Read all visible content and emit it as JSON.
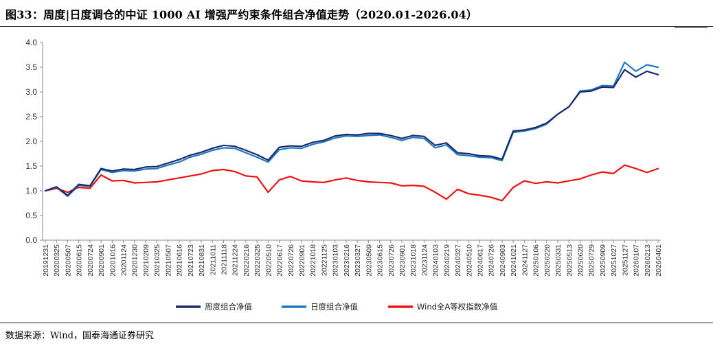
{
  "header": {
    "title": "图33：周度|日度调仓的中证 1000 AI 增强严约束条件组合净值走势（2020.01-2026.04）"
  },
  "footer": {
    "source": "数据来源：Wind，国泰海通证券研究"
  },
  "colors": {
    "weekly": "#1b2a6b",
    "daily": "#1f78c1",
    "wind": "#ee1111"
  },
  "chart_data": {
    "type": "line",
    "title": "",
    "xlabel": "",
    "ylabel": "",
    "ylim": [
      0,
      4.0
    ],
    "yticks": [
      "0.0",
      "0.5",
      "1.0",
      "1.5",
      "2.0",
      "2.5",
      "3.0",
      "3.5",
      "4.0"
    ],
    "grid": false,
    "legend_position": "bottom",
    "x_tick_labels": [
      "20191231",
      "20200325",
      "20200507",
      "20200615",
      "20200724",
      "20200901",
      "20201016",
      "20201124",
      "20201230",
      "20210209",
      "20210325",
      "20210507",
      "20210616",
      "20210723",
      "20210831",
      "20211011",
      "20211118",
      "20211224",
      "20220216",
      "20220325",
      "20220510",
      "20220617",
      "20220726",
      "20220901",
      "20221018",
      "20221125",
      "20230103",
      "20230216",
      "20230327",
      "20230509",
      "20230615",
      "20230726",
      "20230901",
      "20231018",
      "20231124",
      "20240103",
      "20240219",
      "20240327",
      "20240510",
      "20240617",
      "20240726",
      "20240903",
      "20241021",
      "20241127",
      "20250106",
      "20250220",
      "20250331",
      "20250513",
      "20250620",
      "20250729",
      "20250909",
      "20251027",
      "20251127",
      "20260107",
      "20260213",
      "20260401"
    ],
    "series": [
      {
        "name": "周度组合净值",
        "color": "#1b2a6b",
        "values": [
          1.0,
          1.08,
          0.91,
          1.13,
          1.1,
          1.45,
          1.4,
          1.44,
          1.43,
          1.48,
          1.49,
          1.56,
          1.63,
          1.72,
          1.78,
          1.86,
          1.92,
          1.9,
          1.82,
          1.73,
          1.62,
          1.88,
          1.91,
          1.9,
          1.98,
          2.02,
          2.11,
          2.14,
          2.13,
          2.16,
          2.16,
          2.12,
          2.06,
          2.12,
          2.1,
          1.92,
          1.97,
          1.77,
          1.75,
          1.71,
          1.7,
          1.64,
          2.21,
          2.23,
          2.28,
          2.37,
          2.55,
          2.7,
          3.0,
          3.02,
          3.1,
          3.09,
          3.45,
          3.3,
          3.42,
          3.35
        ]
      },
      {
        "name": "日度组合净值",
        "color": "#1f78c1",
        "values": [
          1.0,
          1.07,
          0.89,
          1.11,
          1.09,
          1.43,
          1.37,
          1.41,
          1.4,
          1.44,
          1.45,
          1.52,
          1.58,
          1.68,
          1.74,
          1.82,
          1.87,
          1.86,
          1.77,
          1.68,
          1.58,
          1.83,
          1.87,
          1.86,
          1.94,
          1.99,
          2.07,
          2.11,
          2.1,
          2.12,
          2.13,
          2.08,
          2.02,
          2.08,
          2.06,
          1.87,
          1.93,
          1.73,
          1.71,
          1.68,
          1.67,
          1.61,
          2.18,
          2.21,
          2.26,
          2.35,
          2.55,
          2.7,
          3.02,
          3.04,
          3.13,
          3.12,
          3.6,
          3.42,
          3.55,
          3.5
        ]
      },
      {
        "name": "Wind全A等权指数净值",
        "color": "#ee1111",
        "values": [
          1.0,
          1.05,
          0.97,
          1.07,
          1.05,
          1.32,
          1.2,
          1.21,
          1.16,
          1.17,
          1.18,
          1.22,
          1.26,
          1.3,
          1.34,
          1.41,
          1.43,
          1.39,
          1.3,
          1.28,
          0.97,
          1.22,
          1.29,
          1.2,
          1.18,
          1.17,
          1.22,
          1.26,
          1.21,
          1.18,
          1.17,
          1.16,
          1.1,
          1.11,
          1.09,
          0.97,
          0.83,
          1.03,
          0.94,
          0.91,
          0.87,
          0.8,
          1.07,
          1.2,
          1.15,
          1.18,
          1.16,
          1.2,
          1.24,
          1.32,
          1.38,
          1.35,
          1.52,
          1.45,
          1.37,
          1.45
        ]
      }
    ]
  }
}
